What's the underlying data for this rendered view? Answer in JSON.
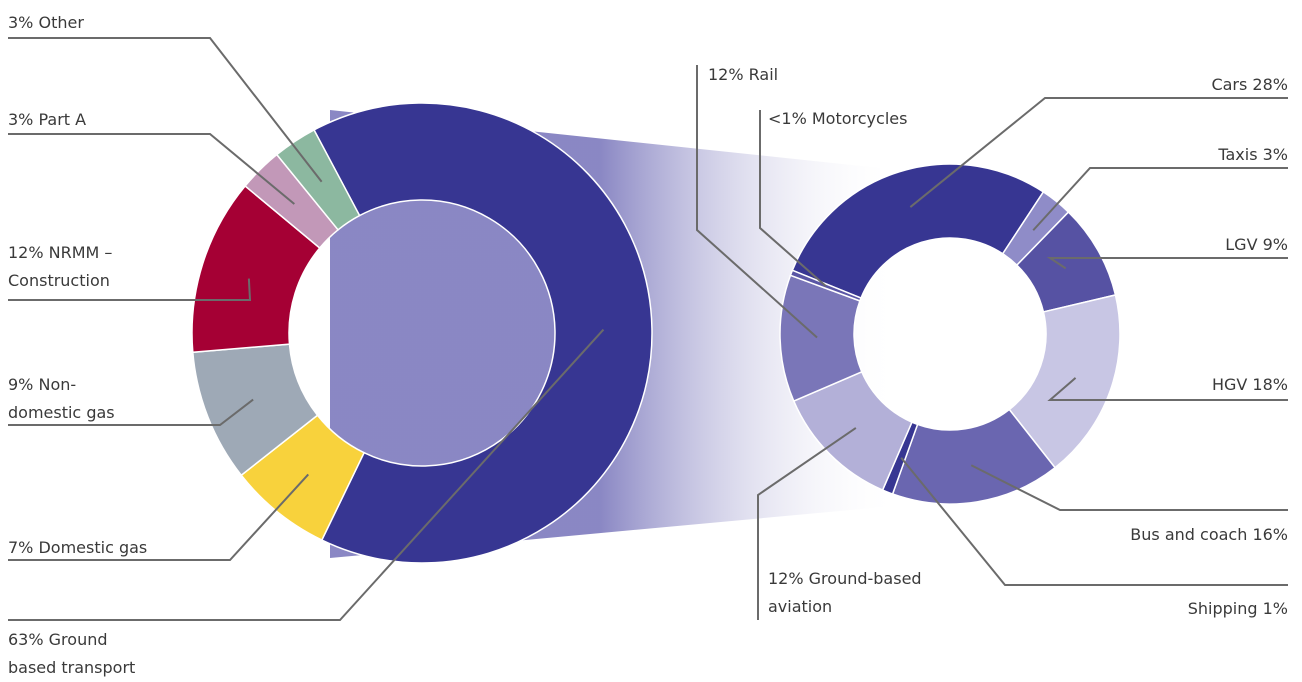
{
  "chart_data": [
    {
      "type": "donut",
      "categories": [
        "63% Ground\nbased transport",
        "7% Domestic gas",
        "9% Non-\ndomestic gas",
        "12% NRMM –\nConstruction",
        "3% Part A",
        "3% Other"
      ],
      "values": [
        63,
        7,
        9,
        12,
        3,
        3
      ],
      "colors": [
        "#373692",
        "#f8d23c",
        "#9ea9b6",
        "#a50034",
        "#c298b8",
        "#8cb8a0"
      ]
    },
    {
      "type": "donut",
      "categories": [
        "Cars 28%",
        "Taxis 3%",
        "LGV 9%",
        "HGV 18%",
        "Bus and coach 16%",
        "Shipping 1%",
        "12% Ground-based\naviation",
        "12% Rail",
        "<1% Motorcycles"
      ],
      "values": [
        28,
        3,
        9,
        18,
        16,
        1,
        12,
        12,
        0.5
      ],
      "colors": [
        "#373692",
        "#8f8cc8",
        "#5652a3",
        "#c8c6e4",
        "#6a66b0",
        "#373692",
        "#b3b0d8",
        "#7a76b8",
        "#5a56a5"
      ]
    }
  ]
}
